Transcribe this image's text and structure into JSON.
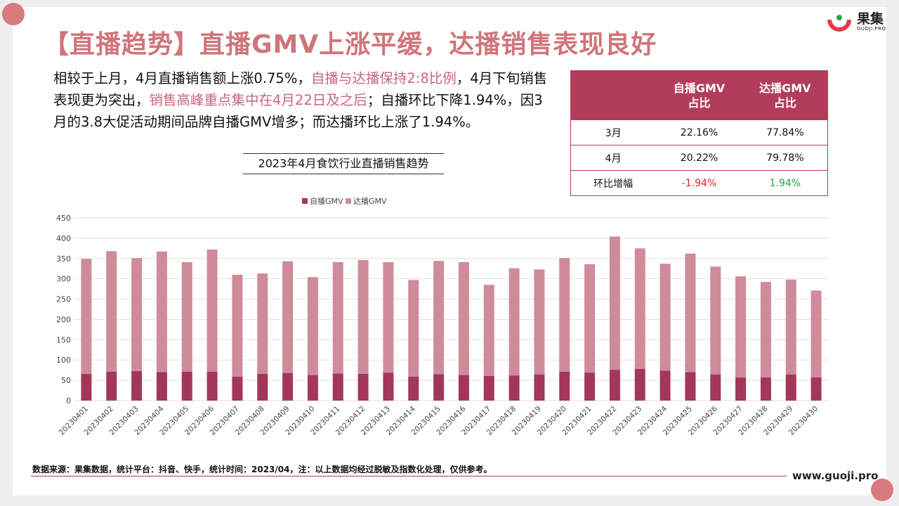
{
  "title": "【直播趋势】直播GMV上涨平缓，达播销售表现良好",
  "logo": {
    "name": "果集",
    "sub": "GUOJI.PRO"
  },
  "intro": {
    "p1": "相较于上月，4月直播销售额上涨0.75%，",
    "h1": "自播与达播保持2:8比例",
    "p2": "，4月下旬销售表现更为突出，",
    "h2": "销售高峰重点集中在4月22日及之后",
    "p3": "；自播环比下降1.94%，因3月的3.8大促活动期间品牌自播GMV增多；而达播环比上涨了1.94%。"
  },
  "ratio_table": {
    "headers": [
      "",
      "自播GMV\n占比",
      "达播GMV\n占比"
    ],
    "rows": [
      {
        "label": "3月",
        "self": "22.16%",
        "talent": "77.84%"
      },
      {
        "label": "4月",
        "self": "20.22%",
        "talent": "79.78%"
      },
      {
        "label": "环比增幅",
        "self": "-1.94%",
        "talent": "1.94%"
      }
    ]
  },
  "chart_data": {
    "type": "bar",
    "stacked": true,
    "title": "2023年4月食饮行业直播销售趋势",
    "xlabel": "",
    "ylabel": "",
    "ylim": [
      0,
      450
    ],
    "yticks": [
      0,
      50,
      100,
      150,
      200,
      250,
      300,
      350,
      400,
      450
    ],
    "legend_position": "top",
    "grid": true,
    "categories": [
      "20230401",
      "20230402",
      "20230403",
      "20230404",
      "20230405",
      "20230406",
      "20230407",
      "20230408",
      "20230409",
      "20230410",
      "20230411",
      "20230412",
      "20230413",
      "20230414",
      "20230415",
      "20230416",
      "20230417",
      "20230418",
      "20230419",
      "20230420",
      "20230421",
      "20230422",
      "20230423",
      "20230424",
      "20230425",
      "20230426",
      "20230427",
      "20230428",
      "20230429",
      "20230430"
    ],
    "series": [
      {
        "name": "自播GMV",
        "color": "#a3375a",
        "values": [
          66,
          71,
          73,
          70,
          71,
          71,
          59,
          66,
          68,
          63,
          67,
          66,
          69,
          59,
          65,
          63,
          61,
          62,
          64,
          71,
          69,
          76,
          78,
          74,
          70,
          64,
          57,
          57,
          64,
          57
        ]
      },
      {
        "name": "达播GMV",
        "color": "#cf8b9a",
        "values": [
          283,
          297,
          278,
          297,
          270,
          301,
          251,
          247,
          275,
          241,
          274,
          280,
          272,
          238,
          279,
          278,
          224,
          264,
          259,
          280,
          267,
          328,
          297,
          263,
          292,
          266,
          249,
          235,
          234,
          214
        ]
      }
    ]
  },
  "footer": {
    "source": "数据来源：果集数据，统计平台：抖音、快手，统计时间：2023/04，注：以上数据均经过脱敏及指数化处理，仅供参考。",
    "site": "www.guoji.pro"
  },
  "colors": {
    "accent": "#b23d5a",
    "title": "#d0757a",
    "highlight": "#c9667a"
  }
}
